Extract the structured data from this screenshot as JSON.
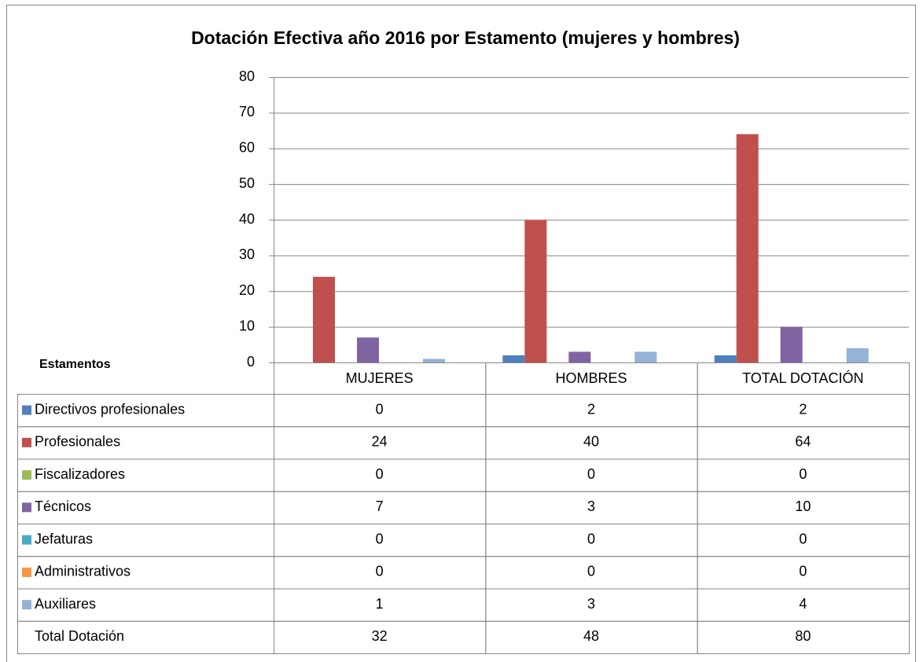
{
  "chart_data": {
    "type": "bar",
    "title": "Dotación Efectiva año 2016 por Estamento (mujeres y hombres)",
    "table_label": "Estamentos",
    "categories": [
      "MUJERES",
      "HOMBRES",
      "TOTAL DOTACIÓN"
    ],
    "series": [
      {
        "name": "Directivos profesionales",
        "color": "#4f81bd",
        "values": [
          0,
          2,
          2
        ]
      },
      {
        "name": "Profesionales",
        "color": "#c0504d",
        "values": [
          24,
          40,
          64
        ]
      },
      {
        "name": "Fiscalizadores",
        "color": "#9bbb59",
        "values": [
          0,
          0,
          0
        ]
      },
      {
        "name": "Técnicos",
        "color": "#8064a2",
        "values": [
          7,
          3,
          10
        ]
      },
      {
        "name": "Jefaturas",
        "color": "#4bacc6",
        "values": [
          0,
          0,
          0
        ]
      },
      {
        "name": "Administrativos",
        "color": "#f79646",
        "values": [
          0,
          0,
          0
        ]
      },
      {
        "name": "Auxiliares",
        "color": "#95b3d7",
        "values": [
          1,
          3,
          4
        ]
      }
    ],
    "totals": {
      "name": "Total Dotación",
      "values": [
        32,
        48,
        80
      ]
    },
    "ylim": [
      0,
      80
    ],
    "yticks": [
      0,
      10,
      20,
      30,
      40,
      50,
      60,
      70,
      80
    ],
    "grid": true
  }
}
